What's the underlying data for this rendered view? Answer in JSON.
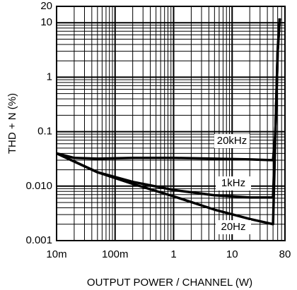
{
  "chart_data": {
    "type": "line",
    "y_label": "THD + N (%)",
    "x_label": "OUTPUT POWER / CHANNEL (W)",
    "log_x": true,
    "log_y": true,
    "grid": true,
    "xlim": [
      0.01,
      80
    ],
    "ylim": [
      0.001,
      20
    ],
    "xticks": [
      {
        "value": 0.01,
        "label": "10m"
      },
      {
        "value": 0.1,
        "label": "100m"
      },
      1,
      10,
      80
    ],
    "yticks": [
      0.001,
      {
        "value": 0.01,
        "label": "0.010"
      },
      0.1,
      1,
      10,
      20
    ],
    "series": [
      {
        "name": "20kHz",
        "color": "#000000",
        "x": [
          0.01,
          0.02,
          0.05,
          0.2,
          1,
          5,
          20,
          50,
          55,
          60,
          65
        ],
        "values": [
          0.04,
          0.033,
          0.032,
          0.033,
          0.033,
          0.032,
          0.031,
          0.03,
          0.1,
          3,
          12
        ]
      },
      {
        "name": "1kHz",
        "color": "#000000",
        "x": [
          0.01,
          0.05,
          0.2,
          1,
          5,
          20,
          50,
          55,
          60,
          65
        ],
        "values": [
          0.04,
          0.018,
          0.012,
          0.0085,
          0.0068,
          0.0062,
          0.0062,
          0.1,
          3,
          12
        ]
      },
      {
        "name": "20Hz",
        "color": "#000000",
        "x": [
          0.01,
          0.05,
          0.2,
          1,
          5,
          20,
          50,
          55,
          60,
          65
        ],
        "values": [
          0.04,
          0.018,
          0.011,
          0.0065,
          0.0037,
          0.0025,
          0.002,
          0.1,
          3,
          12
        ]
      }
    ]
  }
}
